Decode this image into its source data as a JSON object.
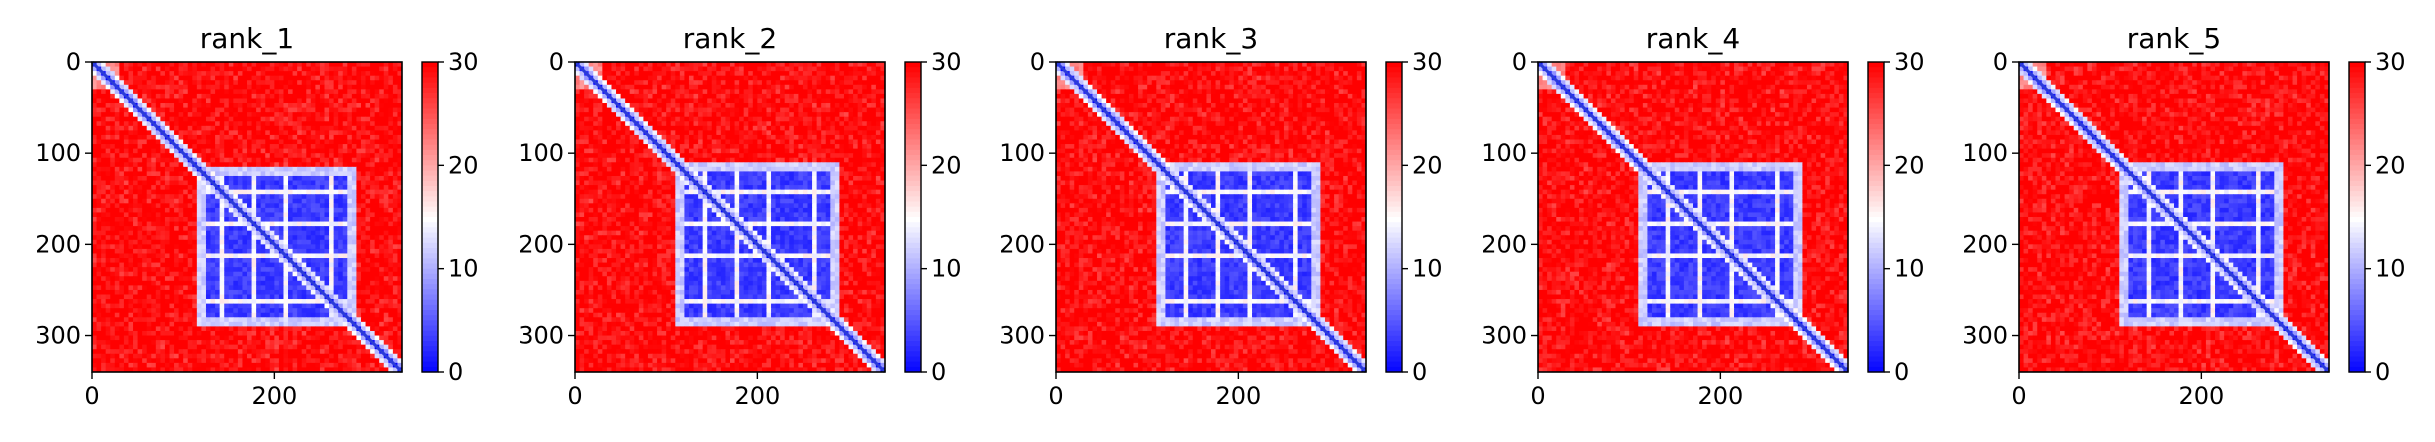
{
  "chart_data": [
    {
      "type": "heatmap",
      "title": "rank_1",
      "xlabel": "",
      "ylabel": "",
      "x_ticks": [
        "0",
        "200"
      ],
      "y_ticks": [
        "0",
        "100",
        "200",
        "300"
      ],
      "xlim": [
        0,
        340
      ],
      "ylim": [
        340,
        0
      ],
      "colorbar": {
        "range": [
          0,
          30
        ],
        "ticks": [
          "0",
          "10",
          "20",
          "30"
        ],
        "colormap": "bwr"
      },
      "structure": {
        "n_residues": 340,
        "domain_range": [
          115,
          285
        ],
        "band_rows": [
          140,
          175,
          210,
          260
        ]
      }
    },
    {
      "type": "heatmap",
      "title": "rank_2",
      "xlabel": "",
      "ylabel": "",
      "x_ticks": [
        "0",
        "200"
      ],
      "y_ticks": [
        "0",
        "100",
        "200",
        "300"
      ],
      "xlim": [
        0,
        340
      ],
      "ylim": [
        340,
        0
      ],
      "colorbar": {
        "range": [
          0,
          30
        ],
        "ticks": [
          "0",
          "10",
          "20",
          "30"
        ],
        "colormap": "bwr"
      },
      "structure": {
        "n_residues": 340,
        "domain_range": [
          110,
          285
        ],
        "band_rows": [
          140,
          175,
          210,
          260
        ]
      }
    },
    {
      "type": "heatmap",
      "title": "rank_3",
      "xlabel": "",
      "ylabel": "",
      "x_ticks": [
        "0",
        "200"
      ],
      "y_ticks": [
        "0",
        "100",
        "200",
        "300"
      ],
      "xlim": [
        0,
        340
      ],
      "ylim": [
        340,
        0
      ],
      "colorbar": {
        "range": [
          0,
          30
        ],
        "ticks": [
          "0",
          "10",
          "20",
          "30"
        ],
        "colormap": "bwr"
      },
      "structure": {
        "n_residues": 340,
        "domain_range": [
          110,
          285
        ],
        "band_rows": [
          140,
          175,
          210,
          260
        ]
      }
    },
    {
      "type": "heatmap",
      "title": "rank_4",
      "xlabel": "",
      "ylabel": "",
      "x_ticks": [
        "0",
        "200"
      ],
      "y_ticks": [
        "0",
        "100",
        "200",
        "300"
      ],
      "xlim": [
        0,
        340
      ],
      "ylim": [
        340,
        0
      ],
      "colorbar": {
        "range": [
          0,
          30
        ],
        "ticks": [
          "0",
          "10",
          "20",
          "30"
        ],
        "colormap": "bwr"
      },
      "structure": {
        "n_residues": 340,
        "domain_range": [
          110,
          285
        ],
        "band_rows": [
          140,
          175,
          210,
          260
        ]
      }
    },
    {
      "type": "heatmap",
      "title": "rank_5",
      "xlabel": "",
      "ylabel": "",
      "x_ticks": [
        "0",
        "200"
      ],
      "y_ticks": [
        "0",
        "100",
        "200",
        "300"
      ],
      "xlim": [
        0,
        340
      ],
      "ylim": [
        340,
        0
      ],
      "colorbar": {
        "range": [
          0,
          30
        ],
        "ticks": [
          "0",
          "10",
          "20",
          "30"
        ],
        "colormap": "bwr"
      },
      "structure": {
        "n_residues": 340,
        "domain_range": [
          110,
          285
        ],
        "band_rows": [
          140,
          175,
          210,
          260
        ]
      }
    }
  ]
}
